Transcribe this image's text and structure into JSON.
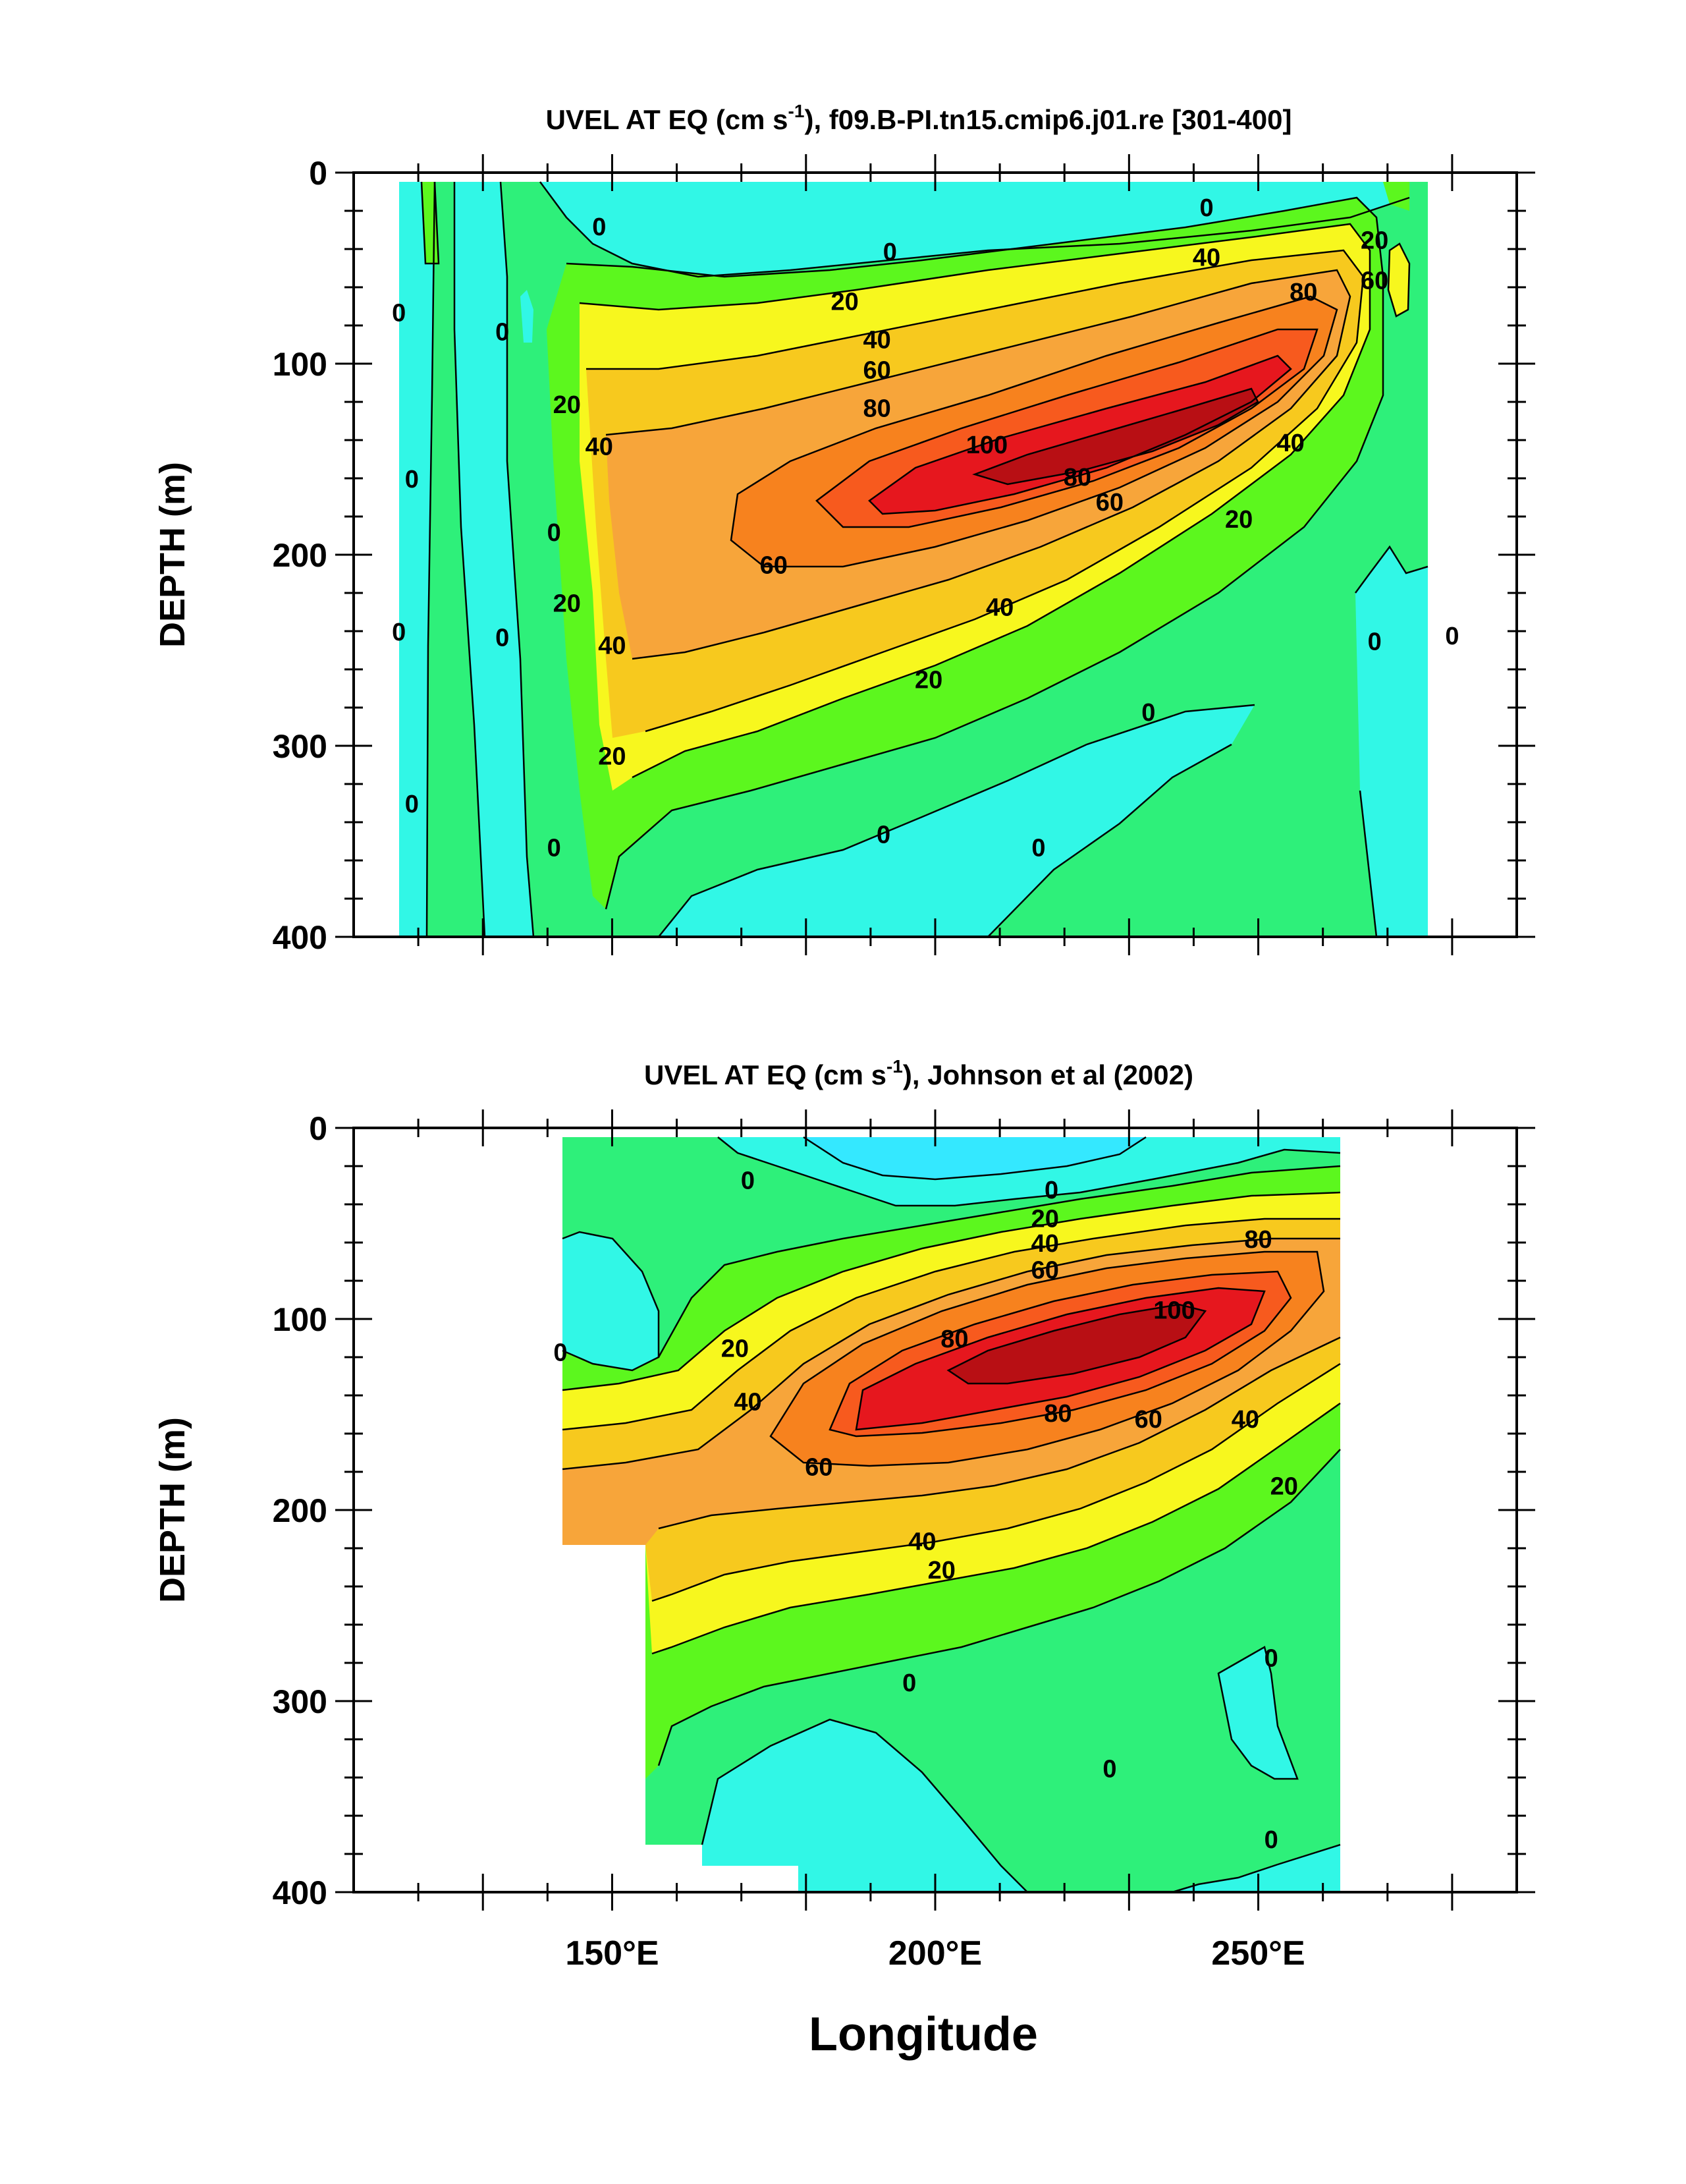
{
  "chart_data": [
    {
      "type": "heatmap",
      "title_main": "UVEL AT EQ (cm s",
      "title_sup": "-1",
      "title_rest": "), f09.B-PI.tn15.cmip6.j01.re [301-400]",
      "ylabel": "DEPTH (m)",
      "xlabel": "",
      "xlim": [
        110,
        290
      ],
      "ylim": [
        400,
        0
      ],
      "yticks": [
        "0",
        "100",
        "200",
        "300",
        "400"
      ],
      "xtick_labels": [],
      "data_extent": {
        "lon": [
          117,
          280
        ],
        "depth": [
          5,
          400
        ]
      },
      "contour_interval": 10,
      "contour_labels": [
        {
          "text": "0",
          "lon": 117,
          "depth": 73
        },
        {
          "text": "0",
          "lon": 117,
          "depth": 240
        },
        {
          "text": "0",
          "lon": 119,
          "depth": 160
        },
        {
          "text": "0",
          "lon": 119,
          "depth": 330
        },
        {
          "text": "0",
          "lon": 133,
          "depth": 83
        },
        {
          "text": "0",
          "lon": 133,
          "depth": 243
        },
        {
          "text": "0",
          "lon": 141,
          "depth": 188
        },
        {
          "text": "0",
          "lon": 141,
          "depth": 353
        },
        {
          "text": "0",
          "lon": 148,
          "depth": 28
        },
        {
          "text": "0",
          "lon": 193,
          "depth": 41
        },
        {
          "text": "0",
          "lon": 242,
          "depth": 18
        },
        {
          "text": "0",
          "lon": 268,
          "depth": 245
        },
        {
          "text": "0",
          "lon": 280,
          "depth": 242
        },
        {
          "text": "0",
          "lon": 192,
          "depth": 346
        },
        {
          "text": "0",
          "lon": 216,
          "depth": 353
        },
        {
          "text": "0",
          "lon": 233,
          "depth": 282
        },
        {
          "text": "20",
          "lon": 186,
          "depth": 67
        },
        {
          "text": "20",
          "lon": 268,
          "depth": 35
        },
        {
          "text": "20",
          "lon": 143,
          "depth": 121
        },
        {
          "text": "20",
          "lon": 143,
          "depth": 225
        },
        {
          "text": "20",
          "lon": 150,
          "depth": 305
        },
        {
          "text": "20",
          "lon": 199,
          "depth": 265
        },
        {
          "text": "20",
          "lon": 247,
          "depth": 181
        },
        {
          "text": "40",
          "lon": 191,
          "depth": 87
        },
        {
          "text": "40",
          "lon": 242,
          "depth": 44
        },
        {
          "text": "40",
          "lon": 148,
          "depth": 143
        },
        {
          "text": "40",
          "lon": 150,
          "depth": 247
        },
        {
          "text": "40",
          "lon": 210,
          "depth": 227
        },
        {
          "text": "40",
          "lon": 255,
          "depth": 141
        },
        {
          "text": "60",
          "lon": 191,
          "depth": 103
        },
        {
          "text": "60",
          "lon": 268,
          "depth": 56
        },
        {
          "text": "60",
          "lon": 175,
          "depth": 205
        },
        {
          "text": "60",
          "lon": 227,
          "depth": 172
        },
        {
          "text": "80",
          "lon": 191,
          "depth": 123
        },
        {
          "text": "80",
          "lon": 257,
          "depth": 62
        },
        {
          "text": "80",
          "lon": 222,
          "depth": 159
        },
        {
          "text": "100",
          "lon": 208,
          "depth": 142
        }
      ]
    },
    {
      "type": "heatmap",
      "title_main": "UVEL AT EQ (cm s",
      "title_sup": "-1",
      "title_rest": "), Johnson et al (2002)",
      "ylabel": "DEPTH (m)",
      "xlabel": "Longitude",
      "xlim": [
        110,
        290
      ],
      "ylim": [
        400,
        0
      ],
      "yticks": [
        "0",
        "100",
        "200",
        "300",
        "400"
      ],
      "xtick_labels": [
        "150°E",
        "200°E",
        "250°E"
      ],
      "xtick_values": [
        150,
        200,
        250
      ],
      "data_extent": {
        "lon": [
          143,
          265
        ],
        "depth": [
          5,
          400
        ]
      },
      "contour_interval": 10,
      "contour_labels": [
        {
          "text": "0",
          "lon": 171,
          "depth": 27
        },
        {
          "text": "0",
          "lon": 142,
          "depth": 117
        },
        {
          "text": "0",
          "lon": 218,
          "depth": 32
        },
        {
          "text": "0",
          "lon": 196,
          "depth": 290
        },
        {
          "text": "0",
          "lon": 227,
          "depth": 335
        },
        {
          "text": "0",
          "lon": 252,
          "depth": 277
        },
        {
          "text": "0",
          "lon": 252,
          "depth": 372
        },
        {
          "text": "20",
          "lon": 169,
          "depth": 115
        },
        {
          "text": "20",
          "lon": 217,
          "depth": 47
        },
        {
          "text": "20",
          "lon": 201,
          "depth": 231
        },
        {
          "text": "20",
          "lon": 254,
          "depth": 187
        },
        {
          "text": "40",
          "lon": 171,
          "depth": 143
        },
        {
          "text": "40",
          "lon": 217,
          "depth": 60
        },
        {
          "text": "40",
          "lon": 198,
          "depth": 216
        },
        {
          "text": "40",
          "lon": 248,
          "depth": 152
        },
        {
          "text": "60",
          "lon": 182,
          "depth": 177
        },
        {
          "text": "60",
          "lon": 217,
          "depth": 74
        },
        {
          "text": "60",
          "lon": 233,
          "depth": 152
        },
        {
          "text": "80",
          "lon": 203,
          "depth": 110
        },
        {
          "text": "80",
          "lon": 250,
          "depth": 58
        },
        {
          "text": "80",
          "lon": 219,
          "depth": 149
        },
        {
          "text": "100",
          "lon": 237,
          "depth": 95
        }
      ]
    }
  ]
}
